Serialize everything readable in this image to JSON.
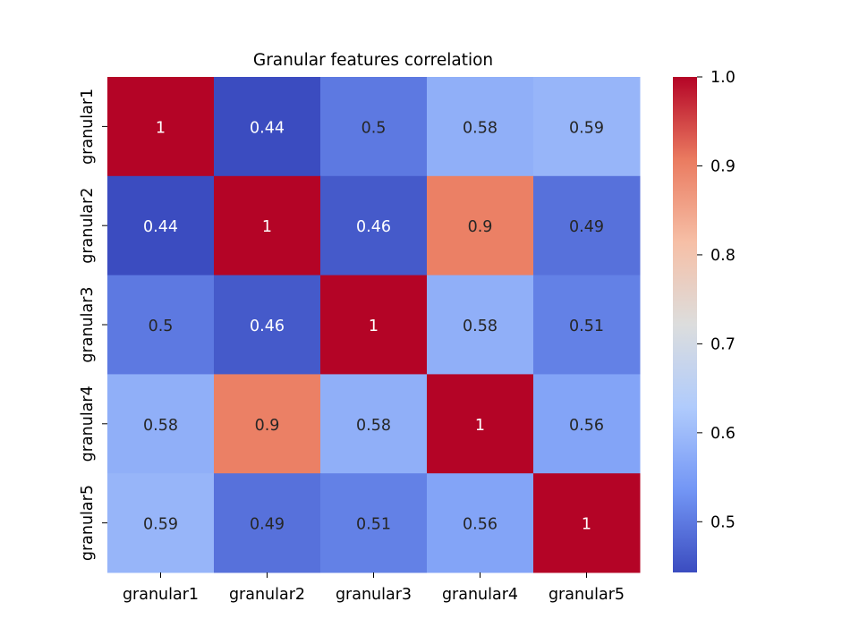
{
  "chart_data": {
    "type": "heatmap",
    "title": "Granular features correlation",
    "xlabel": "",
    "ylabel": "",
    "x_categories": [
      "granular1",
      "granular2",
      "granular3",
      "granular4",
      "granular5"
    ],
    "y_categories": [
      "granular1",
      "granular2",
      "granular3",
      "granular4",
      "granular5"
    ],
    "values": [
      [
        1.0,
        0.44,
        0.5,
        0.58,
        0.59
      ],
      [
        0.44,
        1.0,
        0.46,
        0.9,
        0.49
      ],
      [
        0.5,
        0.46,
        1.0,
        0.58,
        0.51
      ],
      [
        0.58,
        0.9,
        0.58,
        1.0,
        0.56
      ],
      [
        0.59,
        0.49,
        0.51,
        0.56,
        1.0
      ]
    ],
    "annotations": [
      [
        "1",
        "0.44",
        "0.5",
        "0.58",
        "0.59"
      ],
      [
        "0.44",
        "1",
        "0.46",
        "0.9",
        "0.49"
      ],
      [
        "0.5",
        "0.46",
        "1",
        "0.58",
        "0.51"
      ],
      [
        "0.58",
        "0.9",
        "0.58",
        "1",
        "0.56"
      ],
      [
        "0.59",
        "0.49",
        "0.51",
        "0.56",
        "1"
      ]
    ],
    "colormap": "coolwarm",
    "colorbar": {
      "vmin": 0.443,
      "vmax": 1.0,
      "ticks": [
        0.5,
        0.6,
        0.7,
        0.8,
        0.9,
        1.0
      ],
      "tick_labels": [
        "0.5",
        "0.6",
        "0.7",
        "0.8",
        "0.9",
        "1.0"
      ]
    },
    "colors": {
      "stops": [
        "#3b4cc0",
        "#7396f5",
        "#b0cbfc",
        "#dcdddd",
        "#f6bfa6",
        "#ea7b60",
        "#b40426"
      ],
      "text_dark": "#262626",
      "text_light": "#ffffff",
      "axis": "#000000"
    },
    "grid": false
  }
}
